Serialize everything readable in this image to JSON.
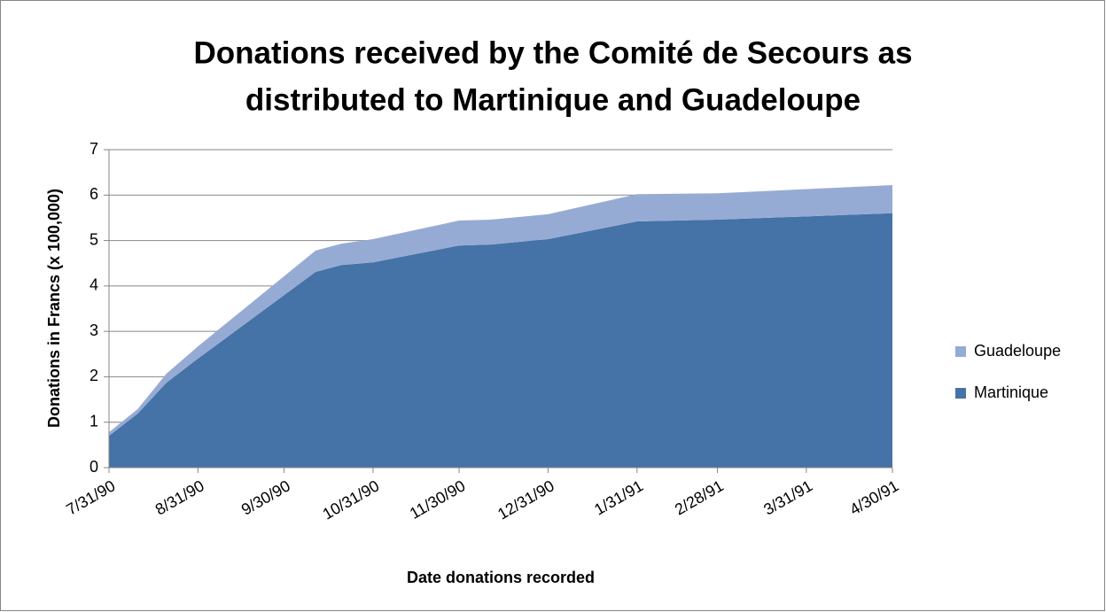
{
  "chart_data": {
    "type": "area",
    "title": [
      "Donations received by the Comité de Secours as",
      "distributed to Martinique and Guadeloupe"
    ],
    "x_label": "Date donations recorded",
    "y_label": "Donations in Francs (x 100,000)",
    "x": [
      "7/31/90",
      "8/10/90",
      "8/20/90",
      "8/31/90",
      "10/11/90",
      "10/20/90",
      "10/31/90",
      "11/30/90",
      "12/11/90",
      "12/31/90",
      "1/31/91",
      "2/28/91",
      "4/30/91"
    ],
    "series": [
      {
        "name": "Martinique",
        "color": "#4572a7",
        "values": [
          0.7,
          1.19,
          1.87,
          2.4,
          4.31,
          4.46,
          4.52,
          4.89,
          4.91,
          5.03,
          5.42,
          5.46,
          5.6
        ]
      },
      {
        "name": "Guadeloupe",
        "color": "#96abd4",
        "values": [
          0.08,
          0.1,
          0.2,
          0.27,
          0.47,
          0.47,
          0.51,
          0.55,
          0.55,
          0.55,
          0.6,
          0.58,
          0.62
        ]
      }
    ],
    "stacked": true,
    "xlim": [
      "7/31/90",
      "4/30/91"
    ],
    "xticks": [
      "7/31/90",
      "8/31/90",
      "9/30/90",
      "10/31/90",
      "11/30/90",
      "12/31/90",
      "1/31/91",
      "2/28/91",
      "3/31/91",
      "4/30/91"
    ],
    "ylim": [
      0,
      7
    ],
    "yticks": [
      0,
      1,
      2,
      3,
      4,
      5,
      6,
      7
    ],
    "grid": true,
    "legend": "right"
  }
}
